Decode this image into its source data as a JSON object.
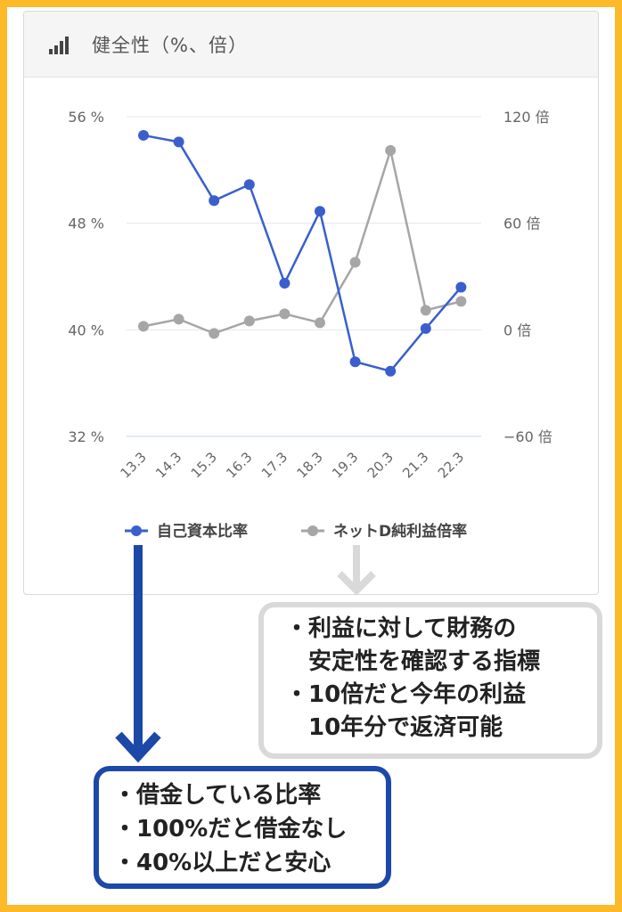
{
  "panel": {
    "title": "健全性（%、倍）",
    "icon": "bar-chart-icon"
  },
  "chart_data": {
    "type": "line",
    "categories": [
      "13.3",
      "14.3",
      "15.3",
      "16.3",
      "17.3",
      "18.3",
      "19.3",
      "20.3",
      "21.3",
      "22.3"
    ],
    "y_left": {
      "ylim": [
        32,
        56
      ],
      "ticks": [
        32,
        40,
        48,
        56
      ],
      "tick_labels": [
        "32 %",
        "40 %",
        "48 %",
        "56 %"
      ]
    },
    "y_right": {
      "ylim": [
        -60,
        120
      ],
      "ticks": [
        -60,
        0,
        60,
        120
      ],
      "tick_labels": [
        "−60 倍",
        "0 倍",
        "60 倍",
        "120 倍"
      ]
    },
    "series": [
      {
        "name": "自己資本比率",
        "axis": "left",
        "color": "#3a5fcd",
        "values": [
          54.6,
          54.1,
          49.7,
          50.9,
          43.5,
          48.9,
          37.6,
          36.9,
          40.1,
          43.2
        ]
      },
      {
        "name": "ネットD純利益倍率",
        "axis": "right",
        "color": "#a6a6a6",
        "values": [
          2,
          6,
          -2,
          5,
          9,
          4,
          38,
          101,
          11,
          16
        ]
      }
    ],
    "grid": true,
    "legend_position": "bottom"
  },
  "annotations": {
    "gray_box": {
      "lines": [
        "・利益に対して財務の",
        "安定性を確認する指標",
        "・10倍だと今年の利益",
        "10年分で返済可能"
      ]
    },
    "blue_box": {
      "lines": [
        "・借金している比率",
        "・100%だと借金なし",
        "・40%以上だと安心"
      ]
    }
  },
  "colors": {
    "background": "#fcb928",
    "blue_accent": "#1c48a8",
    "gray_accent": "#d9d9d9"
  }
}
